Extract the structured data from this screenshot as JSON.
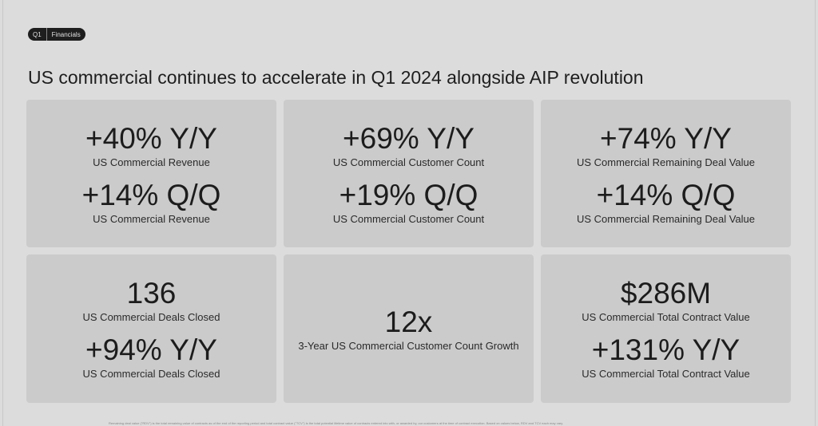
{
  "badge": {
    "section": "Q1",
    "label": "Financials"
  },
  "title": "US commercial continues to accelerate in Q1 2024 alongside AIP revolution",
  "cards": [
    {
      "metrics": [
        {
          "value": "+40% Y/Y",
          "label": "US Commercial Revenue"
        },
        {
          "value": "+14% Q/Q",
          "label": "US Commercial Revenue"
        }
      ]
    },
    {
      "metrics": [
        {
          "value": "+69% Y/Y",
          "label": "US Commercial Customer Count"
        },
        {
          "value": "+19% Q/Q",
          "label": "US Commercial Customer Count"
        }
      ]
    },
    {
      "metrics": [
        {
          "value": "+74% Y/Y",
          "label": "US Commercial Remaining Deal Value"
        },
        {
          "value": "+14% Q/Q",
          "label": "US Commercial Remaining Deal Value"
        }
      ]
    },
    {
      "metrics": [
        {
          "value": "136",
          "label": "US Commercial Deals Closed"
        },
        {
          "value": "+94% Y/Y",
          "label": "US Commercial Deals Closed"
        }
      ]
    },
    {
      "metrics": [
        {
          "value": "12x",
          "label": "3-Year US Commercial Customer Count Growth"
        }
      ]
    },
    {
      "metrics": [
        {
          "value": "$286M",
          "label": "US Commercial Total Contract Value"
        },
        {
          "value": "+131% Y/Y",
          "label": "US Commercial Total Contract Value"
        }
      ]
    }
  ],
  "footnote": "Remaining deal value (\"RDV\") is the total remaining value of contracts as of the end of the reporting period and total contract value (\"TCV\") is the total potential lifetime value of contracts entered into with, or awarded by, our customers at the time of contract execution. Based on values below, RDV and TCV each may vary."
}
